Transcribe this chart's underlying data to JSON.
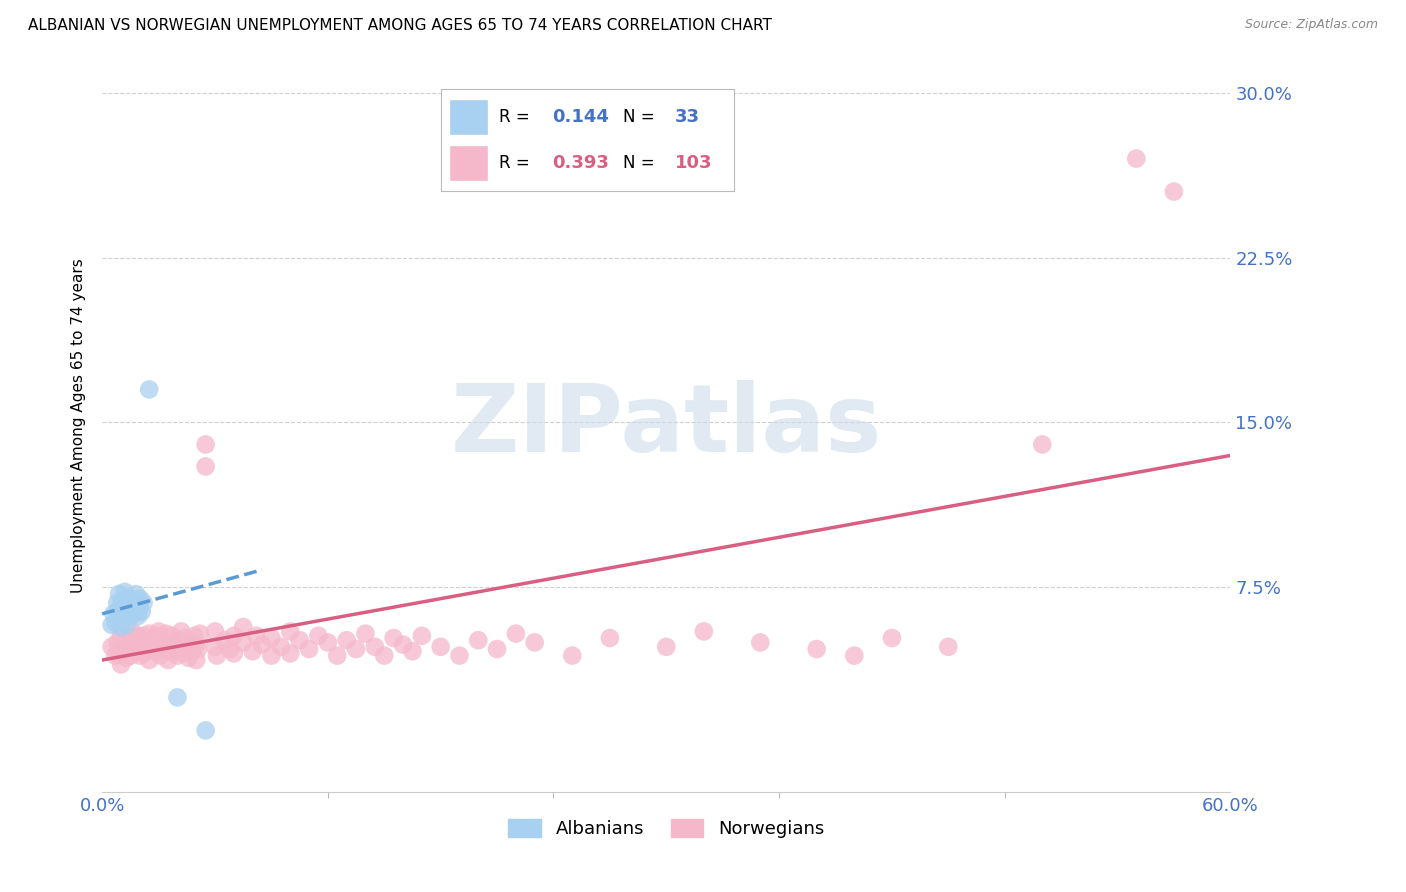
{
  "title": "ALBANIAN VS NORWEGIAN UNEMPLOYMENT AMONG AGES 65 TO 74 YEARS CORRELATION CHART",
  "source": "Source: ZipAtlas.com",
  "xlim": [
    0.0,
    0.6
  ],
  "ylim": [
    -0.018,
    0.315
  ],
  "yticks": [
    0.075,
    0.15,
    0.225,
    0.3
  ],
  "xticks": [
    0.0,
    0.6
  ],
  "albanian_color": "#a8d0f0",
  "norwegian_color": "#f5b8cb",
  "trendline_albanian_color": "#5b9bd5",
  "trendline_norwegian_color": "#d95f82",
  "watermark": "ZIPatlas",
  "watermark_color": "#cddceb",
  "axis_label_color": "#4472c4",
  "albanian_scatter": [
    [
      0.005,
      0.058
    ],
    [
      0.006,
      0.063
    ],
    [
      0.007,
      0.059
    ],
    [
      0.008,
      0.064
    ],
    [
      0.008,
      0.068
    ],
    [
      0.009,
      0.072
    ],
    [
      0.01,
      0.057
    ],
    [
      0.01,
      0.062
    ],
    [
      0.01,
      0.067
    ],
    [
      0.012,
      0.065
    ],
    [
      0.012,
      0.07
    ],
    [
      0.012,
      0.073
    ],
    [
      0.013,
      0.058
    ],
    [
      0.013,
      0.063
    ],
    [
      0.013,
      0.068
    ],
    [
      0.014,
      0.062
    ],
    [
      0.014,
      0.066
    ],
    [
      0.015,
      0.07
    ],
    [
      0.016,
      0.065
    ],
    [
      0.016,
      0.069
    ],
    [
      0.017,
      0.063
    ],
    [
      0.017,
      0.067
    ],
    [
      0.018,
      0.065
    ],
    [
      0.018,
      0.072
    ],
    [
      0.019,
      0.062
    ],
    [
      0.019,
      0.068
    ],
    [
      0.02,
      0.066
    ],
    [
      0.02,
      0.07
    ],
    [
      0.021,
      0.064
    ],
    [
      0.022,
      0.068
    ],
    [
      0.025,
      0.165
    ],
    [
      0.04,
      0.025
    ],
    [
      0.055,
      0.01
    ]
  ],
  "norwegian_scatter": [
    [
      0.005,
      0.048
    ],
    [
      0.007,
      0.044
    ],
    [
      0.008,
      0.05
    ],
    [
      0.009,
      0.046
    ],
    [
      0.01,
      0.053
    ],
    [
      0.01,
      0.04
    ],
    [
      0.012,
      0.047
    ],
    [
      0.013,
      0.043
    ],
    [
      0.013,
      0.051
    ],
    [
      0.014,
      0.048
    ],
    [
      0.015,
      0.044
    ],
    [
      0.015,
      0.052
    ],
    [
      0.016,
      0.047
    ],
    [
      0.016,
      0.055
    ],
    [
      0.017,
      0.05
    ],
    [
      0.018,
      0.046
    ],
    [
      0.018,
      0.053
    ],
    [
      0.019,
      0.049
    ],
    [
      0.02,
      0.044
    ],
    [
      0.02,
      0.052
    ],
    [
      0.021,
      0.048
    ],
    [
      0.022,
      0.045
    ],
    [
      0.022,
      0.053
    ],
    [
      0.023,
      0.05
    ],
    [
      0.024,
      0.047
    ],
    [
      0.025,
      0.054
    ],
    [
      0.025,
      0.042
    ],
    [
      0.027,
      0.049
    ],
    [
      0.028,
      0.046
    ],
    [
      0.029,
      0.053
    ],
    [
      0.03,
      0.048
    ],
    [
      0.03,
      0.055
    ],
    [
      0.031,
      0.044
    ],
    [
      0.032,
      0.051
    ],
    [
      0.033,
      0.047
    ],
    [
      0.034,
      0.054
    ],
    [
      0.035,
      0.042
    ],
    [
      0.035,
      0.049
    ],
    [
      0.036,
      0.046
    ],
    [
      0.037,
      0.053
    ],
    [
      0.038,
      0.05
    ],
    [
      0.039,
      0.047
    ],
    [
      0.04,
      0.044
    ],
    [
      0.04,
      0.051
    ],
    [
      0.041,
      0.048
    ],
    [
      0.042,
      0.055
    ],
    [
      0.043,
      0.045
    ],
    [
      0.044,
      0.052
    ],
    [
      0.045,
      0.048
    ],
    [
      0.046,
      0.043
    ],
    [
      0.047,
      0.05
    ],
    [
      0.048,
      0.046
    ],
    [
      0.049,
      0.053
    ],
    [
      0.05,
      0.042
    ],
    [
      0.05,
      0.049
    ],
    [
      0.051,
      0.047
    ],
    [
      0.052,
      0.054
    ],
    [
      0.055,
      0.13
    ],
    [
      0.055,
      0.14
    ],
    [
      0.06,
      0.048
    ],
    [
      0.06,
      0.055
    ],
    [
      0.061,
      0.044
    ],
    [
      0.065,
      0.051
    ],
    [
      0.068,
      0.047
    ],
    [
      0.07,
      0.053
    ],
    [
      0.07,
      0.045
    ],
    [
      0.075,
      0.05
    ],
    [
      0.075,
      0.057
    ],
    [
      0.08,
      0.046
    ],
    [
      0.082,
      0.053
    ],
    [
      0.085,
      0.049
    ],
    [
      0.09,
      0.044
    ],
    [
      0.09,
      0.052
    ],
    [
      0.095,
      0.048
    ],
    [
      0.1,
      0.055
    ],
    [
      0.1,
      0.045
    ],
    [
      0.105,
      0.051
    ],
    [
      0.11,
      0.047
    ],
    [
      0.115,
      0.053
    ],
    [
      0.12,
      0.05
    ],
    [
      0.125,
      0.044
    ],
    [
      0.13,
      0.051
    ],
    [
      0.135,
      0.047
    ],
    [
      0.14,
      0.054
    ],
    [
      0.145,
      0.048
    ],
    [
      0.15,
      0.044
    ],
    [
      0.155,
      0.052
    ],
    [
      0.16,
      0.049
    ],
    [
      0.165,
      0.046
    ],
    [
      0.17,
      0.053
    ],
    [
      0.18,
      0.048
    ],
    [
      0.19,
      0.044
    ],
    [
      0.2,
      0.051
    ],
    [
      0.21,
      0.047
    ],
    [
      0.22,
      0.054
    ],
    [
      0.23,
      0.05
    ],
    [
      0.25,
      0.044
    ],
    [
      0.27,
      0.052
    ],
    [
      0.3,
      0.048
    ],
    [
      0.32,
      0.055
    ],
    [
      0.35,
      0.05
    ],
    [
      0.38,
      0.047
    ],
    [
      0.4,
      0.044
    ],
    [
      0.42,
      0.052
    ],
    [
      0.45,
      0.048
    ],
    [
      0.5,
      0.14
    ],
    [
      0.55,
      0.27
    ],
    [
      0.57,
      0.255
    ]
  ],
  "albanian_trendline_x": [
    0.0,
    0.085
  ],
  "albanian_trendline_y": [
    0.063,
    0.083
  ],
  "norwegian_trendline_x": [
    0.0,
    0.6
  ],
  "norwegian_trendline_y": [
    0.042,
    0.135
  ]
}
